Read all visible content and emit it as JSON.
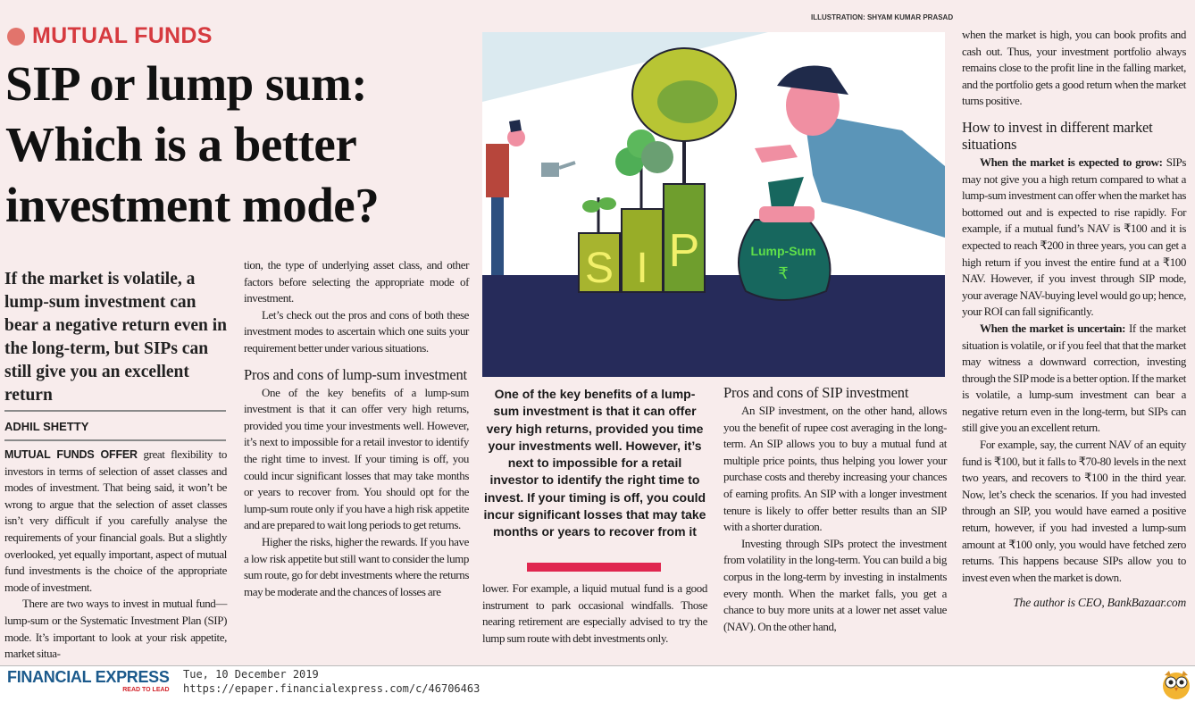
{
  "kicker": "MUTUAL FUNDS",
  "headline": "SIP or lump sum: Which is a better investment mode?",
  "deck": "If the market is volatile, a lump-sum investment can bear a negative return even in the long-term, but SIPs can still give you an excellent return",
  "byline": "ADHIL SHETTY",
  "credit": "ILLUSTRATION: SHYAM KUMAR PRASAD",
  "illustration": {
    "sip_letters": [
      "S",
      "I",
      "P"
    ],
    "bag_label": "Lump-Sum",
    "bag_symbol": "₹"
  },
  "col1": {
    "lead": "MUTUAL FUNDS OFFER",
    "p1": " great flexibility to investors in terms of selection of asset classes and modes of investment. That being said, it won’t be wrong to argue that the selection of asset classes isn’t very difficult if you carefully analyse the requirements of your financial goals. But a slightly overlooked, yet equally important, aspect of mutual fund investments is the choice of the appropriate mode of investment.",
    "p2": "There are two ways to invest in mutual fund—lump-sum or the Systematic Investment Plan (SIP) mode. It’s important to look at your risk appetite, market situa-"
  },
  "col2": {
    "p1": "tion, the type of underlying asset class, and other factors before selecting the appropriate mode of investment.",
    "p2": "Let’s check out the pros and cons of both these investment modes to ascertain which one suits your requirement better under various situations.",
    "h1": "Pros and cons of lump-sum investment",
    "p3": "One of the key benefits of a lump-sum investment is that it can offer very high returns, provided you time your investments well. However, it’s next to impossible for a retail investor to identify the right time to invest. If your timing is off, you could incur significant losses that may take months or years to recover from. You should opt for the lump-sum route only if you have a high risk appetite and are prepared to wait long periods to get returns.",
    "p4": "Higher the risks, higher the rewards. If you have a low risk appetite but still want to consider the lump sum route, go for debt investments where the returns may be moderate and the chances of losses are"
  },
  "pullquote": "One of the key benefits of a lump-sum investment is that it can offer very high returns, provided you time your investments well. However, it’s next to impossible for a retail investor to identify the right time to invest. If your timing is off, you could incur significant losses that may take months or years to recover from it",
  "col3": {
    "p1": "lower. For example, a liquid mutual fund is a good instrument to park occasional windfalls. Those nearing retirement are especially advised to try the lump sum route with debt investments only."
  },
  "col4": {
    "h1": "Pros and cons of SIP investment",
    "p1": "An SIP investment, on the other hand, allows you the benefit of rupee cost averaging in the long-term. An SIP allows you to buy a mutual fund at multiple price points, thus helping you lower your purchase costs and thereby increasing your chances of earning profits. An SIP with a longer investment tenure is likely to offer better results than an SIP with a shorter duration.",
    "p2": "Investing through SIPs protect the investment from volatility in the long-term. You can build a big corpus in the long-term by investing in instalments every month. When the market falls, you get a chance to buy more units at a lower net asset value (NAV). On the other hand,"
  },
  "col5": {
    "p1": "when the market is high, you can book profits and cash out. Thus, your investment portfolio always remains close to the profit line in the falling market, and the portfolio gets a good return when the market turns positive.",
    "h1": "How to invest in different market situations",
    "b1": "When the market is expected to grow:",
    "p2": " SIPs may not give you a high return compared to what a lump-sum investment can offer when the market has bottomed out and is expected to rise rapidly. For example, if a mutual fund’s NAV is ₹100 and it is expected to reach ₹200 in three years, you can get a high return if you invest the entire fund at a ₹100 NAV. However, if you invest through SIP mode, your average NAV-buying level would go up; hence, your ROI can fall significantly.",
    "b2": "When the market is uncertain:",
    "p3": " If the market situation is volatile, or if you feel that that the market may witness a downward correction, investing through the SIP mode is a better option. If the market is volatile, a lump-sum investment can bear a negative return even in the long-term, but SIPs can still give you an excellent return.",
    "p4": "For example, say, the current NAV of an equity fund is ₹100, but it falls to ₹70-80 levels in the next two years, and recovers to ₹100 in the third year. Now, let’s check the scenarios. If you had invested through an SIP, you would have earned a positive return, however, if you had invested a lump-sum amount at ₹100 only, you would have fetched zero returns. This happens because SIPs allow you to invest even when the market is down."
  },
  "author_note": "The author is CEO, BankBazaar.com",
  "footer": {
    "logo": "FINANCIAL EXPRESS",
    "tagline": "READ TO LEAD",
    "date": "Tue, 10 December 2019",
    "url": "https://epaper.financialexpress.com/c/46706463"
  },
  "colors": {
    "kicker": "#d63a3f",
    "pullquote_bar": "#e0264f",
    "logo": "#1c5a8c",
    "background": "#f8ecec"
  }
}
